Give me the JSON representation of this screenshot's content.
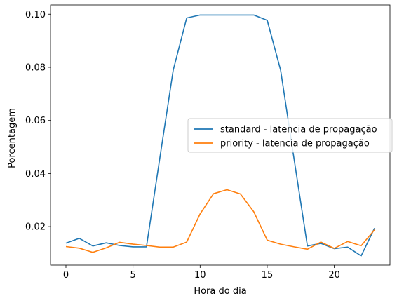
{
  "chart_data": {
    "type": "line",
    "xlabel": "Hora do dia",
    "ylabel": "Porcentagem",
    "xlim": [
      -1.15,
      24.15
    ],
    "ylim": [
      0.0055,
      0.1035
    ],
    "xticks": [
      0,
      5,
      10,
      15,
      20
    ],
    "yticks": [
      0.02,
      0.04,
      0.06,
      0.08,
      0.1
    ],
    "ytick_labels": [
      "0.02",
      "0.04",
      "0.06",
      "0.08",
      "0.10"
    ],
    "grid": false,
    "legend_placement": "center-right",
    "x": [
      0,
      1,
      2,
      3,
      4,
      5,
      6,
      7,
      8,
      9,
      10,
      11,
      12,
      13,
      14,
      15,
      16,
      17,
      18,
      19,
      20,
      21,
      22,
      23
    ],
    "series": [
      {
        "name": "standard - latencia de propagação",
        "color": "#1f77b4",
        "values": [
          0.0138,
          0.0156,
          0.0127,
          0.0139,
          0.0129,
          0.0124,
          0.0124,
          0.0459,
          0.079,
          0.0986,
          0.0997,
          0.0997,
          0.0997,
          0.0997,
          0.0997,
          0.0977,
          0.0789,
          0.0456,
          0.0127,
          0.0137,
          0.0117,
          0.0123,
          0.009,
          0.0194
        ]
      },
      {
        "name": "priority - latencia de propagação",
        "color": "#ff7f0e",
        "values": [
          0.0125,
          0.0119,
          0.0103,
          0.012,
          0.0141,
          0.0134,
          0.0129,
          0.0123,
          0.0123,
          0.0142,
          0.0248,
          0.0324,
          0.0339,
          0.0323,
          0.0256,
          0.0149,
          0.0134,
          0.0124,
          0.0115,
          0.0142,
          0.0118,
          0.0144,
          0.0128,
          0.0188
        ]
      }
    ]
  }
}
